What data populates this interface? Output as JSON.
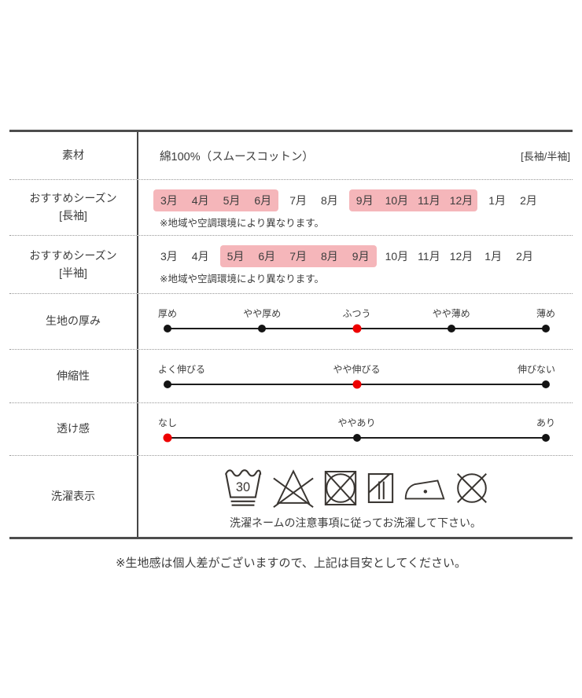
{
  "colors": {
    "highlight_pink": "#f5b6ba",
    "marker_red": "#ee0000",
    "marker_black": "#141414",
    "icon_stroke": "#3a3632"
  },
  "rows": {
    "material": {
      "label": "素材",
      "value": "綿100%（スムースコットン）",
      "sleeve_note": "[長袖/半袖]"
    },
    "season_long": {
      "label_line1": "おすすめシーズン",
      "label_line2": "[長袖]",
      "note": "※地域や空調環境により異なります。",
      "groups": [
        {
          "highlighted": true,
          "months": [
            "3月",
            "4月",
            "5月",
            "6月"
          ]
        },
        {
          "highlighted": false,
          "months": [
            "7月",
            "8月"
          ]
        },
        {
          "highlighted": true,
          "months": [
            "9月",
            "10月",
            "11月",
            "12月"
          ]
        },
        {
          "highlighted": false,
          "months": [
            "1月",
            "2月"
          ]
        }
      ]
    },
    "season_short": {
      "label_line1": "おすすめシーズン",
      "label_line2": "[半袖]",
      "note": "※地域や空調環境により異なります。",
      "groups": [
        {
          "highlighted": false,
          "months": [
            "3月",
            "4月"
          ]
        },
        {
          "highlighted": true,
          "months": [
            "5月",
            "6月",
            "7月",
            "8月",
            "9月"
          ]
        },
        {
          "highlighted": false,
          "months": [
            "10月",
            "11月",
            "12月",
            "1月",
            "2月"
          ]
        }
      ]
    },
    "thickness": {
      "label": "生地の厚み",
      "options": [
        "厚め",
        "やや厚め",
        "ふつう",
        "やや薄め",
        "薄め"
      ],
      "selected_index": 2
    },
    "stretch": {
      "label": "伸縮性",
      "options": [
        "よく伸びる",
        "やや伸びる",
        "伸びない"
      ],
      "selected_index": 1
    },
    "sheerness": {
      "label": "透け感",
      "options": [
        "なし",
        "ややあり",
        "あり"
      ],
      "selected_index": 0
    },
    "laundry": {
      "label": "洗濯表示",
      "icons": [
        "wash-30-very-gentle-icon",
        "do-not-bleach-icon",
        "do-not-tumble-dry-icon",
        "drip-dry-in-shade-icon",
        "iron-low-heat-icon",
        "do-not-dry-clean-icon"
      ],
      "wash_temp": "30",
      "caption": "洗濯ネームの注意事項に従ってお洗濯して下さい。"
    }
  },
  "footnote": "※生地感は個人差がございますので、上記は目安としてください。"
}
